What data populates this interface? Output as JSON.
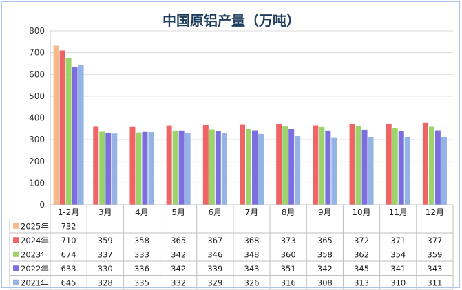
{
  "chart_data": {
    "type": "bar",
    "title": "中国原铝产量（万吨）",
    "xlabel": "",
    "ylabel": "",
    "ylim": [
      0,
      800
    ],
    "yticks": [
      0,
      100,
      200,
      300,
      400,
      500,
      600,
      700,
      800
    ],
    "grid": true,
    "legend": "data-table-left",
    "categories": [
      "1-2月",
      "3月",
      "4月",
      "5月",
      "6月",
      "7月",
      "8月",
      "9月",
      "10月",
      "11月",
      "12月"
    ],
    "series": [
      {
        "name": "2025年",
        "color": "#f6b98a",
        "values": [
          732,
          null,
          null,
          null,
          null,
          null,
          null,
          null,
          null,
          null,
          null
        ]
      },
      {
        "name": "2024年",
        "color": "#ef6464",
        "values": [
          710,
          359,
          358,
          365,
          367,
          368,
          373,
          365,
          372,
          371,
          377
        ]
      },
      {
        "name": "2023年",
        "color": "#9dd36b",
        "values": [
          674,
          337,
          333,
          342,
          346,
          348,
          360,
          358,
          362,
          354,
          359
        ]
      },
      {
        "name": "2022年",
        "color": "#7b6fe0",
        "values": [
          633,
          330,
          336,
          342,
          339,
          343,
          351,
          342,
          345,
          341,
          343
        ]
      },
      {
        "name": "2021年",
        "color": "#93b4e4",
        "values": [
          645,
          328,
          335,
          332,
          329,
          326,
          316,
          308,
          313,
          310,
          311
        ]
      }
    ]
  }
}
